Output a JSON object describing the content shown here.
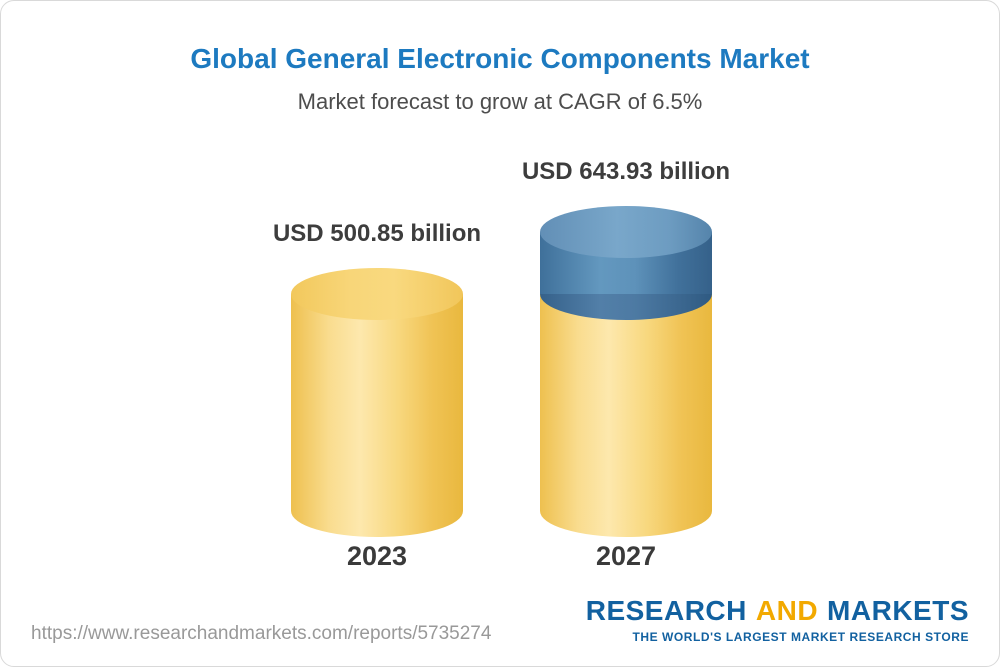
{
  "chart_data": {
    "type": "bar",
    "title": "Global General Electronic Components Market",
    "subtitle": "Market forecast to grow at CAGR of 6.5%",
    "categories": [
      "2023",
      "2027"
    ],
    "values": [
      500.85,
      643.93
    ],
    "value_labels": [
      "USD 500.85 billion",
      "USD 643.93 billion"
    ],
    "unit": "USD billion",
    "cagr": "6.5%",
    "ylim": [
      0,
      700
    ],
    "legend": "none",
    "colors": {
      "base_bar": "#f8d67b",
      "growth_segment": "#4d7fa9",
      "title": "#1d7ac0"
    },
    "style_note": "3D cylinder bars; blue segment on 2027 bar marks growth above the 2023 value"
  },
  "footer": {
    "url_text": "https://www.researchandmarkets.com/reports/5735274",
    "logo": {
      "part1": "RESEARCH",
      "part2": "AND",
      "part3": "MARKETS",
      "tagline": "THE WORLD'S LARGEST MARKET RESEARCH STORE"
    }
  }
}
